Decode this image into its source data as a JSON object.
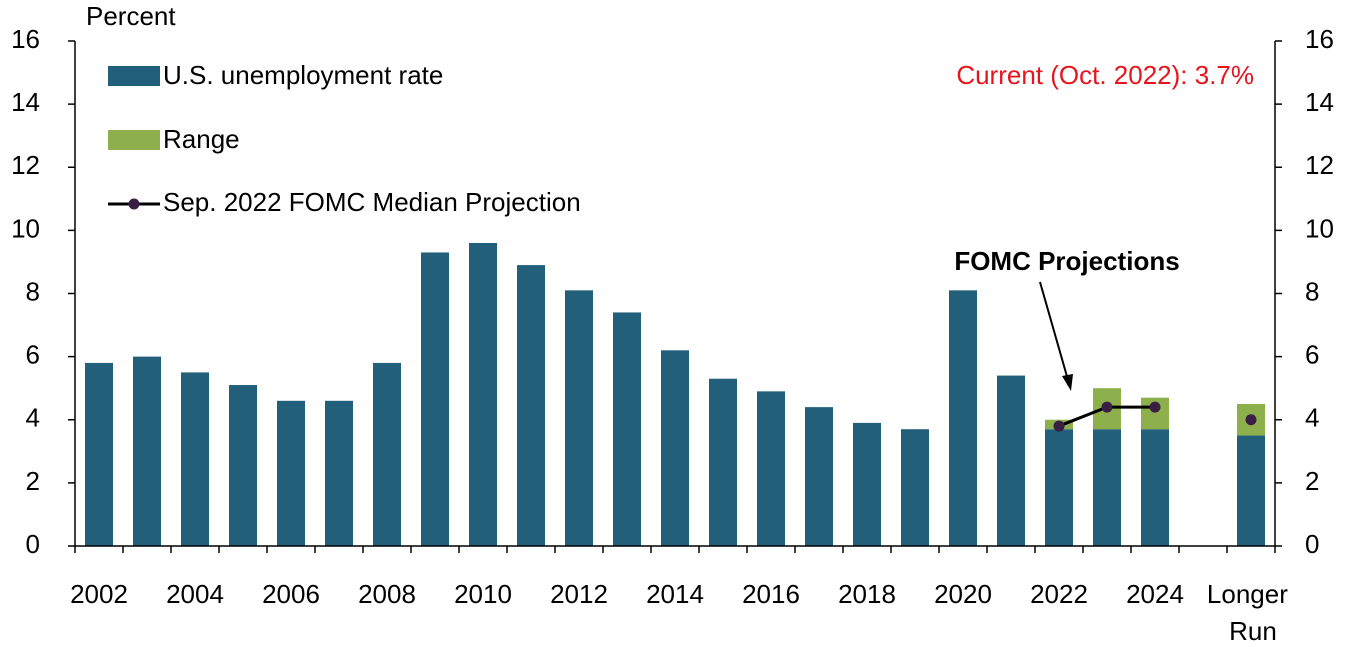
{
  "chart_data": {
    "type": "bar",
    "y_label": "Percent",
    "annotations": [
      "Current (Oct. 2022): 3.7%",
      "FOMC Projections"
    ],
    "categories": [
      "2002",
      null,
      "2004",
      null,
      "2006",
      null,
      "2008",
      null,
      "2010",
      null,
      "2012",
      null,
      "2014",
      null,
      "2016",
      null,
      "2018",
      null,
      "2020",
      null,
      "2022",
      null,
      "2024",
      null,
      "Longer Run"
    ],
    "series": [
      {
        "name": "U.S. unemployment rate",
        "color": "#215f7a",
        "type": "bar",
        "values": [
          5.8,
          6.0,
          5.5,
          5.1,
          4.6,
          4.6,
          5.8,
          9.3,
          9.6,
          8.9,
          8.1,
          7.4,
          6.2,
          5.3,
          4.9,
          4.4,
          3.9,
          3.7,
          8.1,
          5.4,
          3.7,
          3.7,
          3.7,
          null,
          3.5
        ]
      },
      {
        "name": "Range",
        "color": "#8db04d",
        "type": "stacked_bar",
        "values": [
          null,
          null,
          null,
          null,
          null,
          null,
          null,
          null,
          null,
          null,
          null,
          null,
          null,
          null,
          null,
          null,
          null,
          null,
          null,
          null,
          0.3,
          1.3,
          1.0,
          null,
          1.0
        ]
      },
      {
        "name": "Sep. 2022 FOMC Median Projection",
        "color": "#000000",
        "marker_color": "#3a1f45",
        "type": "line",
        "values": [
          null,
          null,
          null,
          null,
          null,
          null,
          null,
          null,
          null,
          null,
          null,
          null,
          null,
          null,
          null,
          null,
          null,
          null,
          null,
          null,
          3.8,
          4.4,
          4.4,
          null,
          4.0
        ]
      }
    ],
    "ylim": [
      0,
      16
    ],
    "yticks": [
      0,
      2,
      4,
      6,
      8,
      10,
      12,
      14,
      16
    ],
    "y2lim": [
      0,
      16
    ],
    "y2ticks": [
      0,
      2,
      4,
      6,
      8,
      10,
      12,
      14,
      16
    ],
    "legend": "upper left",
    "grid": false
  }
}
